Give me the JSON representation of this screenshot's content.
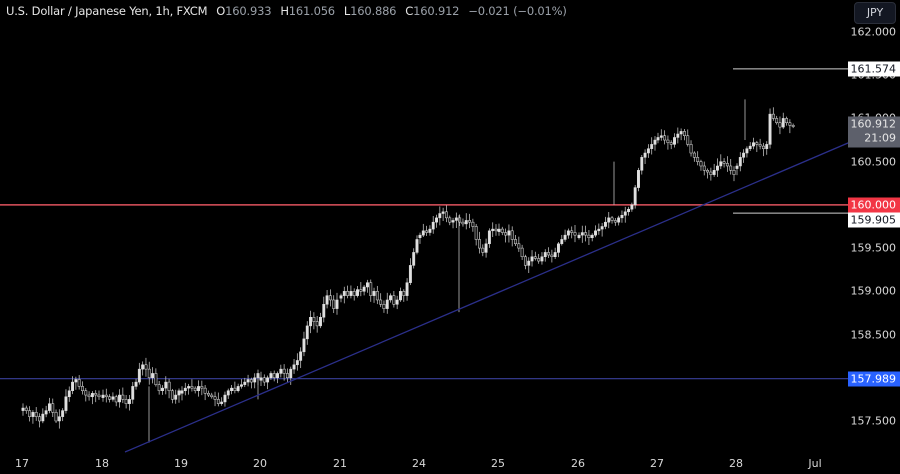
{
  "header": {
    "symbol_title": "U.S. Dollar / Japanese Yen, 1h, FXCM",
    "open_label": "O",
    "open_value": "160.933",
    "high_label": "H",
    "high_value": "161.056",
    "low_label": "L",
    "low_value": "160.886",
    "close_label": "C",
    "close_value": "160.912",
    "change": "−0.021 (−0.01%)"
  },
  "currency_button": "JPY",
  "price_axis": {
    "ticks": [
      "162.000",
      "161.500",
      "161.000",
      "160.500",
      "159.500",
      "159.000",
      "158.500",
      "157.500"
    ]
  },
  "time_axis": {
    "ticks": [
      "17",
      "18",
      "19",
      "20",
      "21",
      "24",
      "25",
      "26",
      "27",
      "28",
      "Jul"
    ]
  },
  "price_tags": {
    "resistance_high": "161.574",
    "current_price": "160.912",
    "countdown": "21:09",
    "key_level": "160.000",
    "support_low": "159.905",
    "support_line": "157.989"
  },
  "colors": {
    "background": "#000000",
    "candle": "#e0e0e0",
    "red_level": "#f23645",
    "blue_level": "#3a3f9a",
    "trendline": "#2b2f8a",
    "white_level": "#d0d0d0"
  },
  "chart_data": {
    "type": "candlestick",
    "title": "U.S. Dollar / Japanese Yen, 1h, FXCM",
    "xlabel": "",
    "ylabel": "JPY",
    "ylim": [
      157.2,
      162.3
    ],
    "categories": [
      "17",
      "18",
      "19",
      "20",
      "21",
      "24",
      "25",
      "26",
      "27",
      "28",
      "Jul"
    ],
    "horizontal_levels": [
      {
        "price": 160.0,
        "color": "#f23645",
        "label": "160.000"
      },
      {
        "price": 157.989,
        "color": "#2962ff",
        "label": "157.989"
      },
      {
        "price": 161.574,
        "color": "#ffffff",
        "label": "161.574",
        "x_start_day": "28"
      },
      {
        "price": 159.905,
        "color": "#ffffff",
        "label": "159.905",
        "x_start_day": "28"
      }
    ],
    "trendline": {
      "from": {
        "day": "18",
        "price": 157.22
      },
      "to": {
        "day": "Jul+",
        "price": 160.73
      }
    },
    "daily_path": [
      {
        "day": "17",
        "points": [
          157.65,
          157.62,
          157.55,
          157.6,
          157.55,
          157.5,
          157.58,
          157.62,
          157.7,
          157.6,
          157.5,
          157.55,
          157.62,
          157.78,
          157.85,
          157.95,
          157.98,
          157.9,
          157.85,
          157.8,
          157.78,
          157.82,
          157.8,
          157.78
        ]
      },
      {
        "day": "18",
        "points": [
          157.8,
          157.78,
          157.75,
          157.78,
          157.72,
          157.8,
          157.75,
          157.7,
          157.75,
          157.9,
          157.95,
          158.1,
          158.15,
          158.1,
          158.0,
          158.05,
          157.92,
          157.85,
          157.88,
          157.95,
          157.85,
          157.75,
          157.8,
          157.85
        ]
      },
      {
        "day": "19",
        "points": [
          157.85,
          157.88,
          157.9,
          157.88,
          157.85,
          157.9,
          157.88,
          157.82,
          157.8,
          157.78,
          157.75,
          157.7,
          157.72,
          157.8,
          157.85,
          157.88,
          157.85,
          157.9,
          157.92,
          157.95,
          157.98,
          157.95,
          158.0,
          158.05
        ]
      },
      {
        "day": "20",
        "points": [
          158.0,
          157.95,
          158.0,
          158.05,
          158.0,
          158.05,
          158.1,
          158.05,
          158.0,
          158.1,
          158.15,
          158.2,
          158.3,
          158.45,
          158.6,
          158.7,
          158.65,
          158.6,
          158.7,
          158.85,
          158.95,
          158.9,
          158.8,
          158.9
        ]
      },
      {
        "day": "21",
        "points": [
          158.95,
          159.0,
          158.95,
          159.0,
          158.95,
          159.02,
          159.0,
          159.05,
          159.1,
          158.95,
          159.0,
          158.9,
          158.85,
          158.8,
          158.9,
          158.95,
          158.85,
          158.9,
          159.0,
          158.95,
          159.1,
          159.3,
          159.45,
          159.6
        ]
      },
      {
        "day": "24",
        "points": [
          159.65,
          159.7,
          159.68,
          159.72,
          159.8,
          159.85,
          159.9,
          159.92,
          159.85,
          159.8,
          159.82,
          159.85,
          159.8,
          159.78,
          159.82,
          159.8,
          159.75,
          159.6,
          159.5,
          159.45,
          159.55,
          159.7,
          159.72,
          159.7
        ]
      },
      {
        "day": "25",
        "points": [
          159.72,
          159.68,
          159.65,
          159.7,
          159.6,
          159.55,
          159.5,
          159.4,
          159.3,
          159.35,
          159.4,
          159.38,
          159.35,
          159.4,
          159.45,
          159.42,
          159.4,
          159.45,
          159.55,
          159.6,
          159.65,
          159.7,
          159.68,
          159.65
        ]
      },
      {
        "day": "26",
        "points": [
          159.65,
          159.68,
          159.65,
          159.62,
          159.65,
          159.7,
          159.72,
          159.75,
          159.8,
          159.85,
          159.82,
          159.8,
          159.85,
          159.88,
          159.92,
          159.95,
          160.0,
          160.2,
          160.4,
          160.55,
          160.6,
          160.65,
          160.7,
          160.75
        ]
      },
      {
        "day": "27",
        "points": [
          160.78,
          160.8,
          160.75,
          160.72,
          160.7,
          160.78,
          160.82,
          160.85,
          160.8,
          160.7,
          160.6,
          160.55,
          160.5,
          160.45,
          160.4,
          160.38,
          160.35,
          160.4,
          160.45,
          160.5,
          160.48,
          160.45,
          160.4,
          160.35
        ]
      },
      {
        "day": "28",
        "points": [
          160.45,
          160.55,
          160.6,
          160.65,
          160.68,
          160.72,
          160.7,
          160.68,
          160.65,
          160.7,
          161.05,
          161.0,
          160.95,
          160.9,
          161.0,
          160.95,
          160.92,
          160.91
        ]
      }
    ]
  }
}
